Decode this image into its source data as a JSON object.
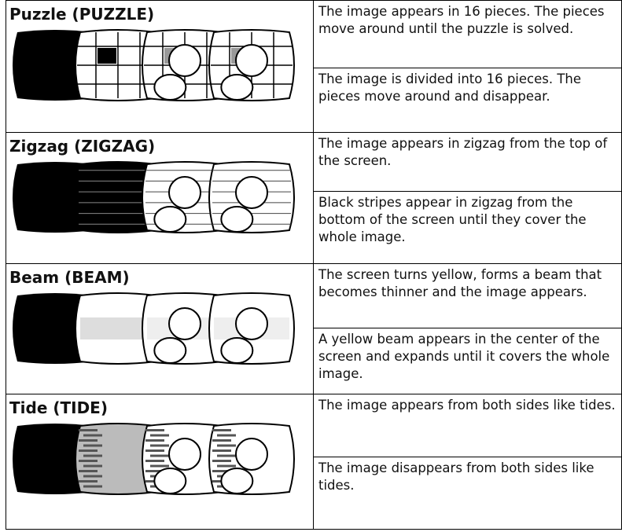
{
  "rows": [
    {
      "title": "Puzzle (PUZZLE)",
      "descriptions": [
        "The image appears in 16 pieces. The pieces move around until the puzzle is solved.",
        "The image is divided into 16 pieces. The pieces move around and disappear."
      ]
    },
    {
      "title": "Zigzag (ZIGZAG)",
      "descriptions": [
        "The image appears in zigzag from the top of the screen.",
        "Black stripes appear in zigzag from the bottom of the screen until they cover the whole image."
      ]
    },
    {
      "title": "Beam (BEAM)",
      "descriptions": [
        "The screen turns yellow, forms a beam that becomes thinner and the image appears.",
        "A yellow beam appears in the center of the screen and expands until it covers the whole image."
      ]
    },
    {
      "title": "Tide (TIDE)",
      "descriptions": [
        "The image appears from both sides like tides.",
        "The image disappears from both sides like tides."
      ]
    }
  ]
}
